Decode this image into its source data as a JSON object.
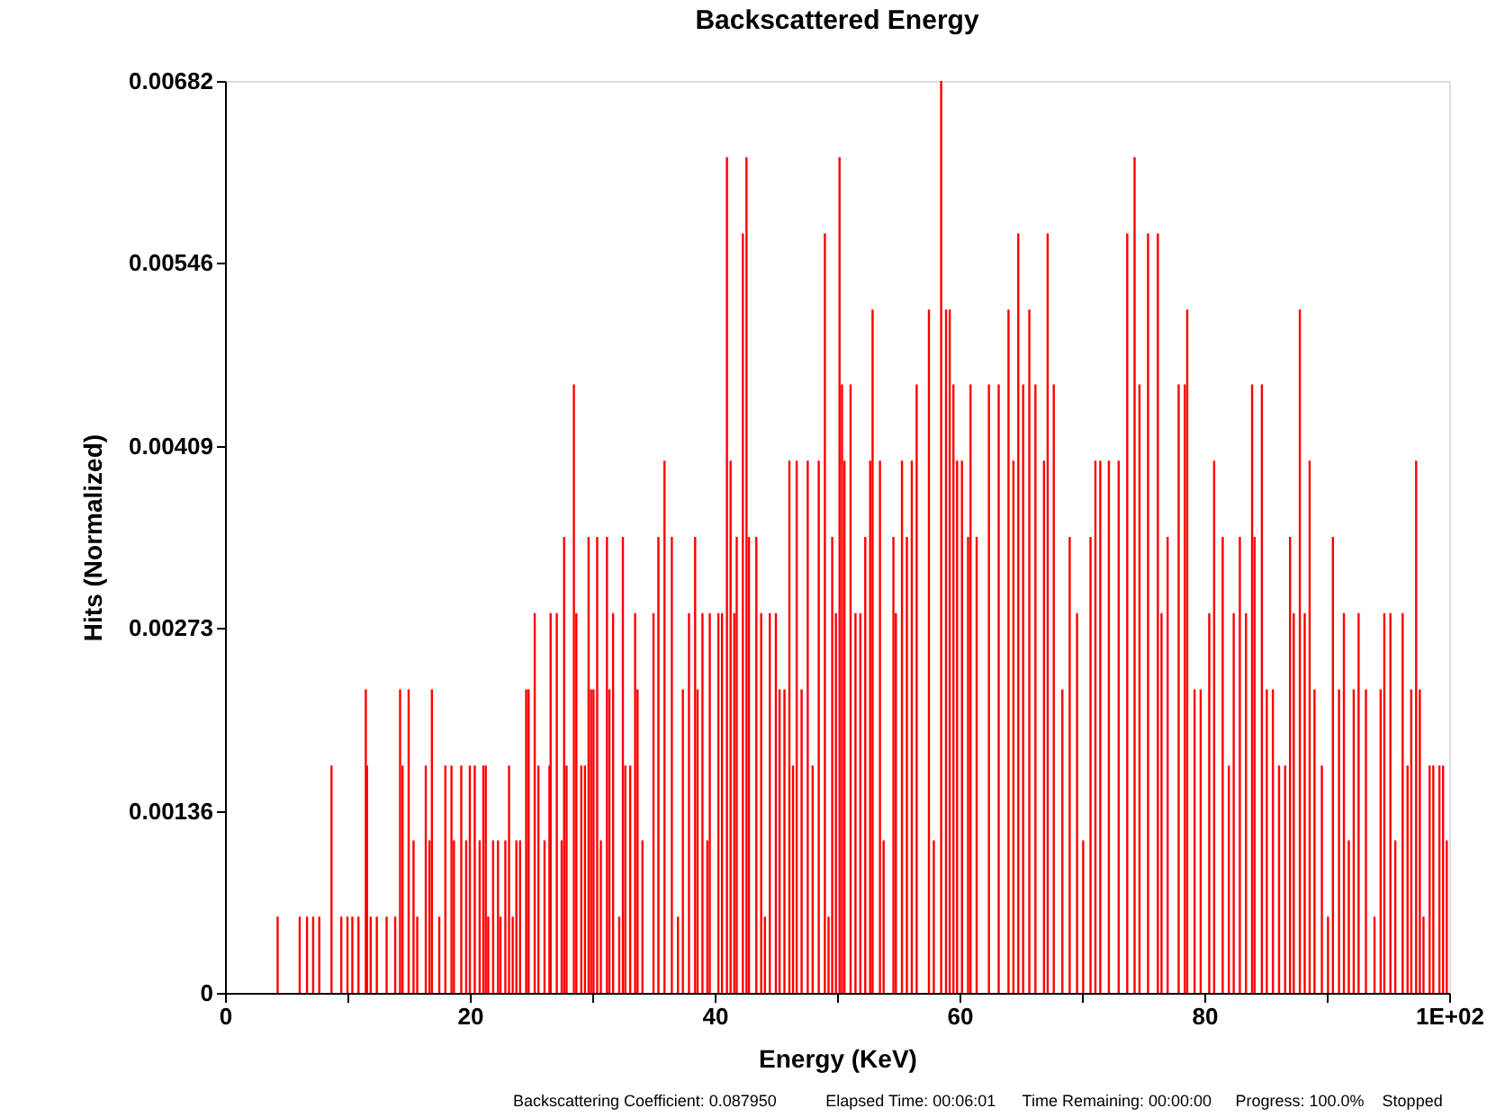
{
  "chart_data": {
    "type": "bar",
    "title": "Backscattered Energy",
    "xlabel": "Energy (KeV)",
    "ylabel": "Hits (Normalized)",
    "x": [
      4.3,
      6.1,
      6.7,
      7.2,
      7.7,
      8.7,
      9.5,
      10,
      10.4,
      10.9,
      11.5,
      11.6,
      11.9,
      12.4,
      13.2,
      13.9,
      14.3,
      14.5,
      15,
      15.4,
      15.7,
      16.4,
      16.7,
      16.9,
      17.5,
      18,
      18.5,
      18.7,
      19.3,
      19.7,
      20,
      20.4,
      20.8,
      21.1,
      21.3,
      21.5,
      21.9,
      22.3,
      22.5,
      22.9,
      23.2,
      23.5,
      23.8,
      24.1,
      24.6,
      24.8,
      25.3,
      25.6,
      26.1,
      26.5,
      26.6,
      27.1,
      27.5,
      27.7,
      27.9,
      28.5,
      28.7,
      29.1,
      29.4,
      29.7,
      29.9,
      30.1,
      30.4,
      30.7,
      31.2,
      31.4,
      31.7,
      32.2,
      32.5,
      32.7,
      33.1,
      33.5,
      33.7,
      34.1,
      35,
      35.4,
      35.9,
      36.5,
      37,
      37.4,
      37.9,
      38.4,
      38.6,
      39,
      39.4,
      39.6,
      40.3,
      40.6,
      41,
      41.3,
      41.6,
      41.8,
      42.3,
      42.6,
      42.8,
      43.4,
      43.8,
      44.1,
      44.5,
      45,
      45.3,
      45.7,
      46.1,
      46.4,
      46.7,
      47.1,
      47.6,
      48,
      48.5,
      49,
      49.3,
      49.6,
      49.9,
      50.2,
      50.4,
      50.6,
      51.1,
      51.5,
      51.9,
      52.3,
      52.7,
      52.9,
      53.5,
      53.8,
      54.6,
      54.8,
      55.3,
      55.7,
      56.1,
      56.5,
      57.5,
      57.9,
      58.5,
      58.9,
      59.2,
      59.5,
      59.8,
      60.2,
      60.7,
      60.9,
      61.4,
      62.4,
      63.2,
      64,
      64.4,
      64.8,
      65.2,
      65.7,
      66.2,
      66.9,
      67.2,
      67.7,
      68.4,
      69,
      69.6,
      70.1,
      70.7,
      71.1,
      71.5,
      72.2,
      73,
      73.7,
      74.3,
      74.7,
      75.4,
      76.2,
      76.5,
      77,
      77.9,
      78.4,
      78.6,
      79.2,
      79.7,
      80.4,
      80.8,
      81.5,
      82,
      82.4,
      82.9,
      83.4,
      83.9,
      84.1,
      84.7,
      85.1,
      85.6,
      86.1,
      86.6,
      87,
      87.3,
      87.8,
      88.2,
      88.6,
      89,
      89.6,
      90.1,
      90.5,
      91,
      91.4,
      91.8,
      92.2,
      92.6,
      93.2,
      93.9,
      94.4,
      94.7,
      95.2,
      95.6,
      96.2,
      96.6,
      96.9,
      97.3,
      97.6,
      97.9,
      98.4,
      98.7,
      99.2,
      99.5,
      99.8
    ],
    "series": [
      {
        "color": "#ff0000",
        "values": [
          0.00057,
          0.00057,
          0.00057,
          0.00057,
          0.00057,
          0.0017,
          0.00057,
          0.00057,
          0.00057,
          0.00057,
          0.00227,
          0.0017,
          0.00057,
          0.00057,
          0.00057,
          0.00057,
          0.00227,
          0.0017,
          0.00227,
          0.00114,
          0.00057,
          0.0017,
          0.00114,
          0.00227,
          0.00057,
          0.0017,
          0.0017,
          0.00114,
          0.0017,
          0.00114,
          0.0017,
          0.0017,
          0.00114,
          0.0017,
          0.0017,
          0.00057,
          0.00114,
          0.00114,
          0.00057,
          0.00114,
          0.0017,
          0.00057,
          0.00114,
          0.00114,
          0.00227,
          0.00227,
          0.00284,
          0.0017,
          0.00114,
          0.0017,
          0.00284,
          0.00284,
          0.00114,
          0.00341,
          0.0017,
          0.00455,
          0.00284,
          0.0017,
          0.0017,
          0.00341,
          0.00227,
          0.00227,
          0.00341,
          0.00114,
          0.00341,
          0.00227,
          0.00284,
          0.00057,
          0.00341,
          0.0017,
          0.0017,
          0.00284,
          0.00227,
          0.00114,
          0.00284,
          0.00341,
          0.00398,
          0.00341,
          0.00057,
          0.00227,
          0.00284,
          0.00341,
          0.00227,
          0.00284,
          0.00114,
          0.00284,
          0.00284,
          0.00284,
          0.00625,
          0.00398,
          0.00284,
          0.00341,
          0.00568,
          0.00625,
          0.00341,
          0.00341,
          0.00284,
          0.00057,
          0.00284,
          0.00284,
          0.00227,
          0.00227,
          0.00398,
          0.0017,
          0.00398,
          0.00227,
          0.00398,
          0.0017,
          0.00398,
          0.00568,
          0.00057,
          0.00341,
          0.00284,
          0.00625,
          0.00455,
          0.00398,
          0.00455,
          0.00284,
          0.00284,
          0.00341,
          0.00398,
          0.00511,
          0.00398,
          0.00114,
          0.00341,
          0.00284,
          0.00398,
          0.00341,
          0.00398,
          0.00455,
          0.00511,
          0.00114,
          0.00682,
          0.00511,
          0.00511,
          0.00455,
          0.00398,
          0.00398,
          0.00341,
          0.00455,
          0.00341,
          0.00455,
          0.00455,
          0.00511,
          0.00398,
          0.00568,
          0.00455,
          0.00511,
          0.00455,
          0.00398,
          0.00568,
          0.00455,
          0.00227,
          0.00341,
          0.00284,
          0.00114,
          0.00341,
          0.00398,
          0.00398,
          0.00398,
          0.00398,
          0.00568,
          0.00625,
          0.00455,
          0.00568,
          0.00568,
          0.00284,
          0.00341,
          0.00455,
          0.00455,
          0.00511,
          0.00227,
          0.00227,
          0.00284,
          0.00398,
          0.00341,
          0.0017,
          0.00284,
          0.00341,
          0.00284,
          0.00455,
          0.00341,
          0.00455,
          0.00227,
          0.00227,
          0.0017,
          0.0017,
          0.00341,
          0.00284,
          0.00511,
          0.00284,
          0.00398,
          0.00227,
          0.0017,
          0.00057,
          0.00341,
          0.00227,
          0.00284,
          0.00114,
          0.00227,
          0.00284,
          0.00227,
          0.00057,
          0.00227,
          0.00284,
          0.00284,
          0.00114,
          0.00284,
          0.0017,
          0.00227,
          0.00398,
          0.00227,
          0.00057,
          0.0017,
          0.0017,
          0.0017,
          0.0017,
          0.00114
        ]
      }
    ],
    "xlim": [
      0,
      100
    ],
    "xticks": [
      0,
      {
        "value": 10,
        "label": null
      },
      20,
      {
        "value": 30,
        "label": null
      },
      40,
      {
        "value": 50,
        "label": null
      },
      60,
      {
        "value": 70,
        "label": null
      },
      80,
      {
        "value": 90,
        "label": null
      },
      {
        "value": 100,
        "label": "1E+02"
      }
    ],
    "ylim": [
      0,
      0.00682
    ],
    "yticks": [
      0,
      0.00136,
      0.00273,
      0.00409,
      0.00546,
      0.00682
    ],
    "grid": false,
    "annotations": [
      "Backscattering Coefficient: 0.087950",
      "Elapsed Time: 00:06:01",
      "Time Remaining: 00:00:00",
      "Progress: 100.0%",
      "Stopped"
    ]
  }
}
